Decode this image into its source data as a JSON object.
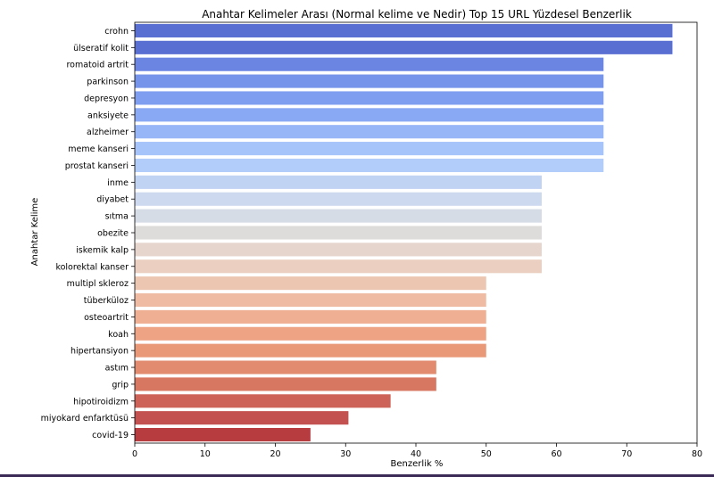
{
  "chart_data": {
    "type": "bar",
    "orientation": "horizontal",
    "title": "Anahtar Kelimeler Arası (Normal kelime ve Nedir) Top 15 URL Yüzdesel Benzerlik",
    "xlabel": "Benzerlik %",
    "ylabel": "Anahtar Kelime",
    "xlim": [
      0,
      80
    ],
    "xticks": [
      0,
      10,
      20,
      30,
      40,
      50,
      60,
      70,
      80
    ],
    "grid": false,
    "palette": "coolwarm",
    "categories": [
      "crohn",
      "ülseratif kolit",
      "romatoid artrit",
      "parkinson",
      "depresyon",
      "anksiyete",
      "alzheimer",
      "meme kanseri",
      "prostat kanseri",
      "inme",
      "diyabet",
      "sıtma",
      "obezite",
      "iskemik kalp",
      "kolorektal kanser",
      "multipl skleroz",
      "tüberküloz",
      "osteoartrit",
      "koah",
      "hipertansiyon",
      "astım",
      "grip",
      "hipotiroidizm",
      "miyokard enfarktüsü",
      "covid-19"
    ],
    "values": [
      76.5,
      76.5,
      66.7,
      66.7,
      66.7,
      66.7,
      66.7,
      66.7,
      66.7,
      57.9,
      57.9,
      57.9,
      57.9,
      57.9,
      57.9,
      50.0,
      50.0,
      50.0,
      50.0,
      50.0,
      42.9,
      42.9,
      36.4,
      30.4,
      25.0
    ],
    "colors": [
      "#5a6fd2",
      "#5a6fd2",
      "#6a85e2",
      "#7695ea",
      "#7f9ef0",
      "#8aa9f4",
      "#97b6f8",
      "#a6c3fa",
      "#b3cdfa",
      "#c1d3f3",
      "#ccd9ee",
      "#d6dce6",
      "#dedcda",
      "#e6d5cc",
      "#ebcfc0",
      "#edc6b2",
      "#efbba3",
      "#efaf93",
      "#eea384",
      "#e99878",
      "#e28b6e",
      "#d77762",
      "#cd6258",
      "#c2514f",
      "#b73c40"
    ]
  }
}
